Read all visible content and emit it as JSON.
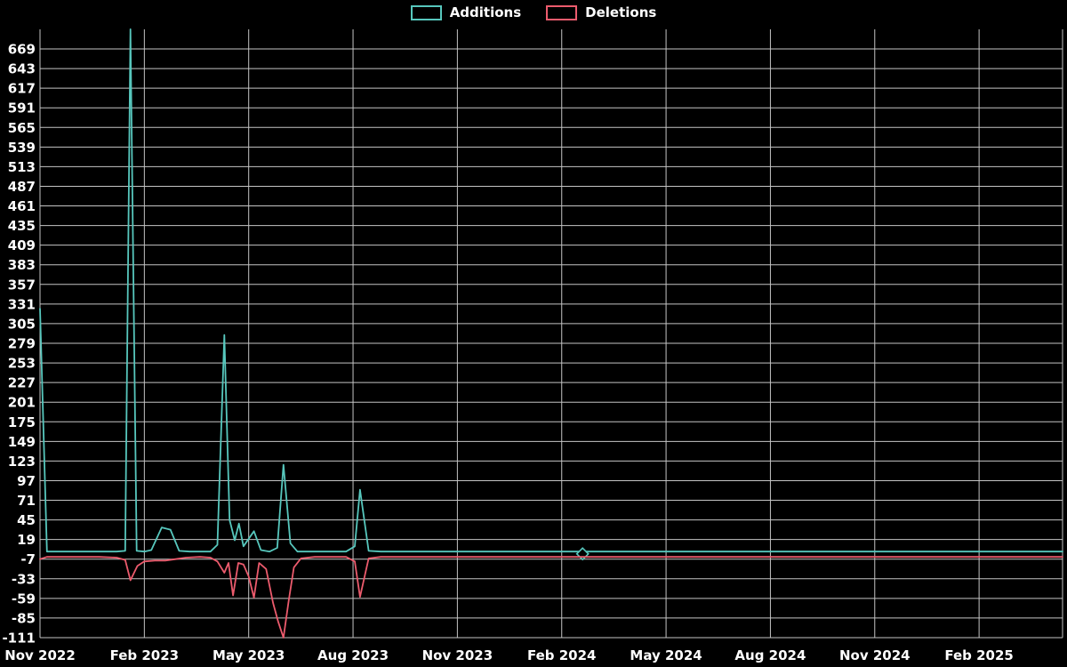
{
  "page": {
    "background": "#000000",
    "text_color": "#ffffff"
  },
  "chart_data": {
    "type": "line",
    "title": "",
    "xlabel": "",
    "ylabel": "",
    "legend_position": "top-center",
    "grid": {
      "horizontal": true,
      "vertical": true,
      "color": "#c4c4c4"
    },
    "x_axis": {
      "unit": "months_since_Nov_2022",
      "range": [
        0,
        29.4
      ],
      "ticks": [
        {
          "pos": 0,
          "label": "Nov 2022"
        },
        {
          "pos": 3,
          "label": "Feb 2023"
        },
        {
          "pos": 6,
          "label": "May 2023"
        },
        {
          "pos": 9,
          "label": "Aug 2023"
        },
        {
          "pos": 12,
          "label": "Nov 2023"
        },
        {
          "pos": 15,
          "label": "Feb 2024"
        },
        {
          "pos": 18,
          "label": "May 2024"
        },
        {
          "pos": 21,
          "label": "Aug 2024"
        },
        {
          "pos": 24,
          "label": "Nov 2024"
        },
        {
          "pos": 27,
          "label": "Feb 2025"
        }
      ]
    },
    "y_axis": {
      "tick_step": 26,
      "ticks": [
        669,
        643,
        617,
        591,
        565,
        539,
        513,
        487,
        461,
        435,
        409,
        383,
        357,
        331,
        305,
        279,
        253,
        227,
        201,
        175,
        149,
        123,
        97,
        71,
        45,
        19,
        -7,
        -33,
        -59,
        -85,
        -111
      ]
    },
    "series": [
      {
        "name": "Additions",
        "color": "#57c7bd",
        "points": [
          [
            0,
            325
          ],
          [
            0.2,
            3
          ],
          [
            0.7,
            3
          ],
          [
            1.2,
            3
          ],
          [
            1.7,
            3
          ],
          [
            2.2,
            3
          ],
          [
            2.45,
            4
          ],
          [
            2.6,
            695
          ],
          [
            2.78,
            4
          ],
          [
            3.0,
            3
          ],
          [
            3.2,
            5
          ],
          [
            3.5,
            35
          ],
          [
            3.75,
            32
          ],
          [
            4.0,
            4
          ],
          [
            4.3,
            3
          ],
          [
            4.6,
            3
          ],
          [
            4.9,
            3
          ],
          [
            5.1,
            12
          ],
          [
            5.3,
            290
          ],
          [
            5.45,
            45
          ],
          [
            5.6,
            18
          ],
          [
            5.72,
            40
          ],
          [
            5.85,
            10
          ],
          [
            6.15,
            30
          ],
          [
            6.35,
            5
          ],
          [
            6.6,
            3
          ],
          [
            6.82,
            8
          ],
          [
            7.0,
            118
          ],
          [
            7.2,
            14
          ],
          [
            7.4,
            3
          ],
          [
            7.8,
            3
          ],
          [
            8.3,
            3
          ],
          [
            8.8,
            3
          ],
          [
            9.05,
            10
          ],
          [
            9.2,
            85
          ],
          [
            9.45,
            4
          ],
          [
            9.8,
            3
          ],
          [
            29.4,
            3
          ]
        ],
        "markers": [
          {
            "x": 15.6,
            "v": 0,
            "shape": "diamond"
          }
        ]
      },
      {
        "name": "Deletions",
        "color": "#ec5b6d",
        "points": [
          [
            0,
            -7
          ],
          [
            0.2,
            -4
          ],
          [
            0.7,
            -4
          ],
          [
            1.2,
            -4
          ],
          [
            1.7,
            -4
          ],
          [
            2.2,
            -5
          ],
          [
            2.45,
            -8
          ],
          [
            2.6,
            -35
          ],
          [
            2.8,
            -16
          ],
          [
            3.0,
            -10
          ],
          [
            3.3,
            -9
          ],
          [
            3.6,
            -9
          ],
          [
            3.9,
            -7
          ],
          [
            4.2,
            -5
          ],
          [
            4.6,
            -4
          ],
          [
            4.9,
            -5
          ],
          [
            5.1,
            -10
          ],
          [
            5.3,
            -25
          ],
          [
            5.42,
            -12
          ],
          [
            5.55,
            -55
          ],
          [
            5.7,
            -12
          ],
          [
            5.85,
            -14
          ],
          [
            6.0,
            -30
          ],
          [
            6.15,
            -58
          ],
          [
            6.3,
            -12
          ],
          [
            6.5,
            -20
          ],
          [
            6.7,
            -65
          ],
          [
            6.85,
            -90
          ],
          [
            7.0,
            -111
          ],
          [
            7.15,
            -62
          ],
          [
            7.3,
            -18
          ],
          [
            7.5,
            -6
          ],
          [
            7.9,
            -4
          ],
          [
            8.3,
            -4
          ],
          [
            8.8,
            -4
          ],
          [
            9.05,
            -10
          ],
          [
            9.2,
            -57
          ],
          [
            9.45,
            -6
          ],
          [
            9.8,
            -4
          ],
          [
            29.4,
            -4
          ]
        ],
        "markers": []
      }
    ]
  }
}
